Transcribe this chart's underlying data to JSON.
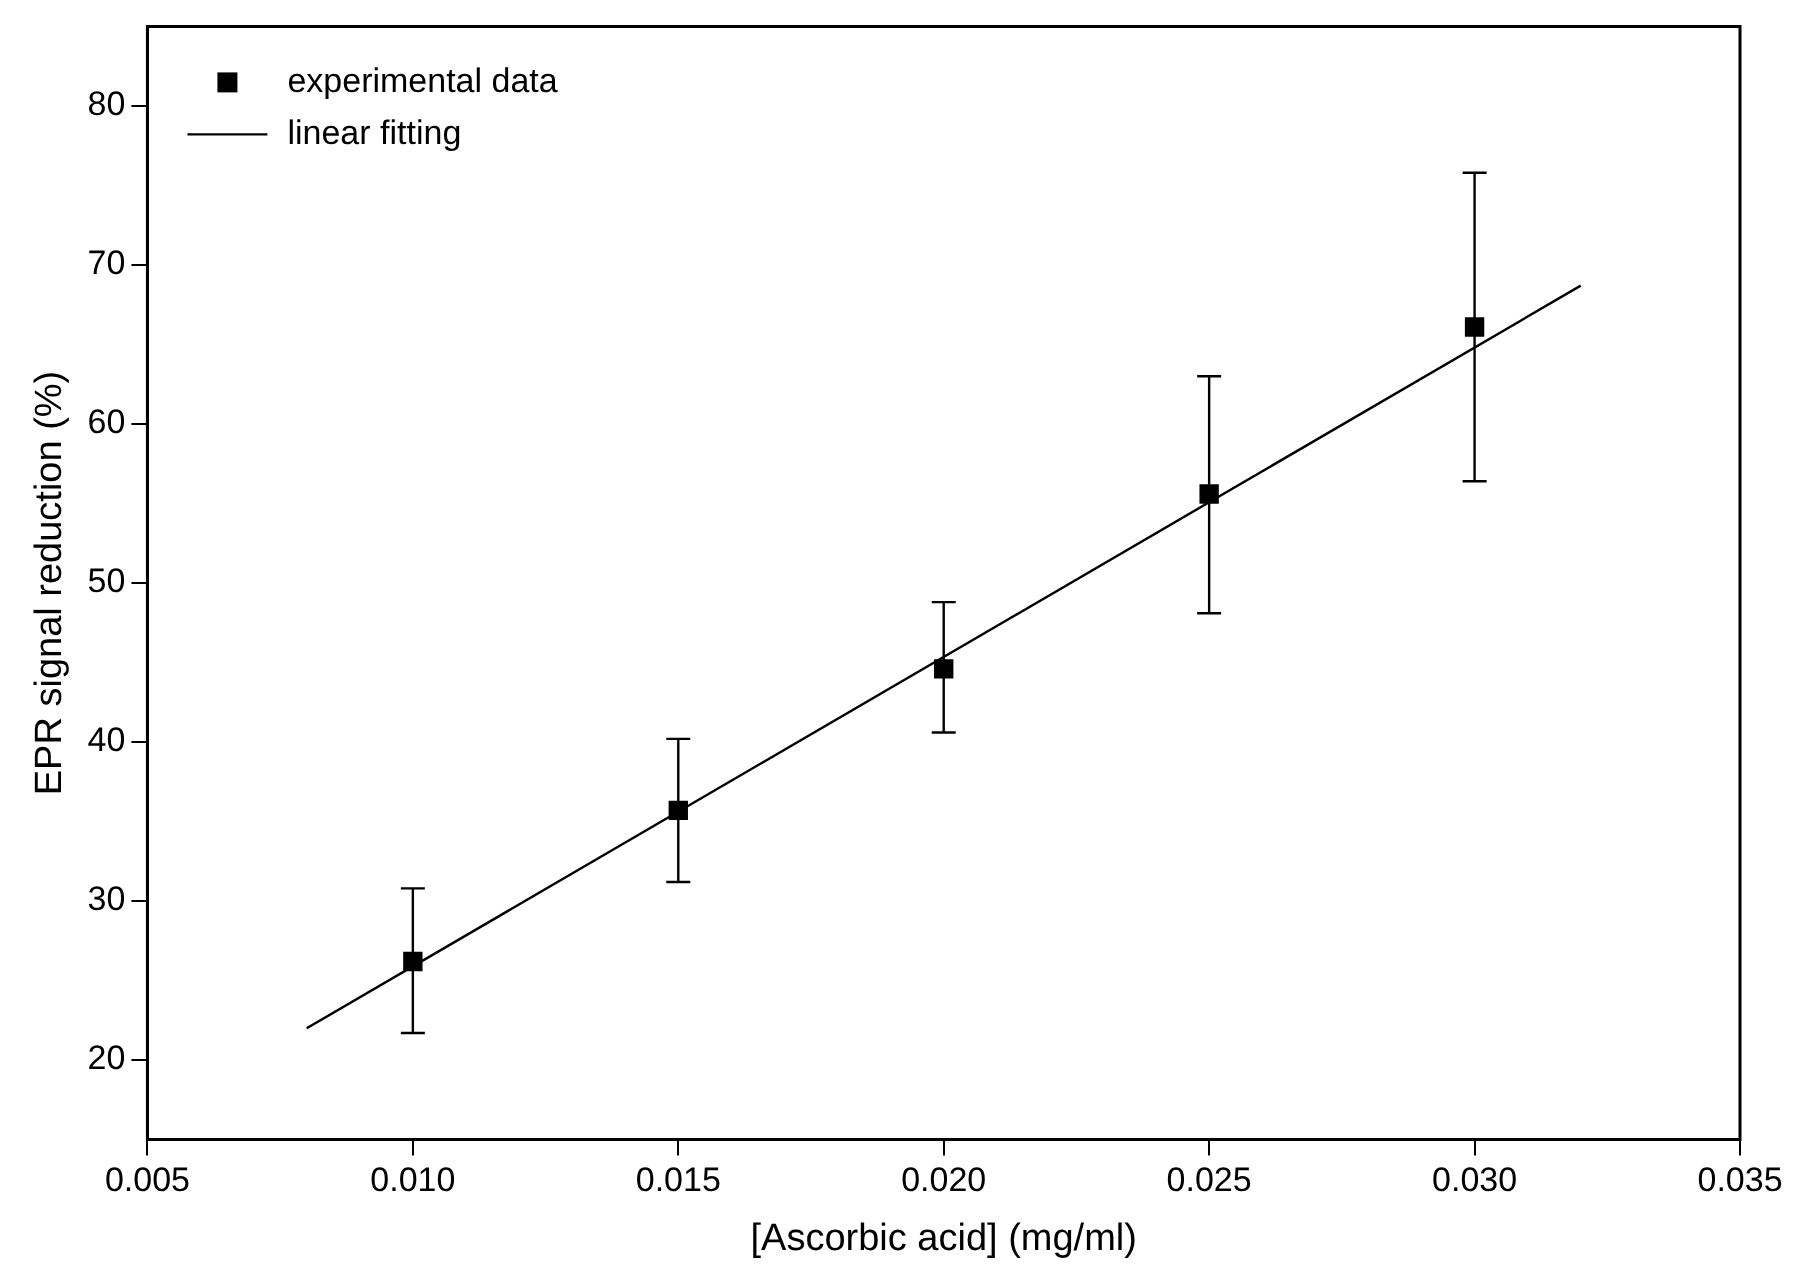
{
  "chart_data": {
    "type": "scatter",
    "xlabel": "[Ascorbic acid] (mg/ml)",
    "ylabel": "EPR signal reduction (%)",
    "xlim": [
      0.005,
      0.035
    ],
    "xticks": [
      0.005,
      {
        "value": 0.01,
        "label": "0.010"
      },
      0.015,
      {
        "value": 0.02,
        "label": "0.020"
      },
      0.025,
      {
        "value": 0.03,
        "label": "0.030"
      },
      0.035
    ],
    "ylim": [
      15,
      85
    ],
    "yticks": [
      20,
      30,
      40,
      50,
      60,
      70,
      80
    ],
    "grid": false,
    "legend": "top left",
    "series": [
      {
        "name": "experimental data",
        "marker": "square",
        "color": "#000000",
        "x": [
          0.01,
          0.015,
          0.02,
          0.025,
          0.03
        ],
        "values": [
          26.2,
          35.7,
          44.6,
          55.6,
          66.1
        ],
        "errors": [
          [
            21.7,
            30.8
          ],
          [
            31.2,
            40.2
          ],
          [
            40.6,
            48.8
          ],
          [
            48.1,
            63.0
          ],
          [
            56.4,
            75.8
          ]
        ]
      },
      {
        "name": "linear fitting",
        "type": "line",
        "marker": "none",
        "line_style": "solid",
        "color": "#000000",
        "x": [
          0.008,
          0.032
        ],
        "values": [
          22.0,
          68.7
        ]
      }
    ]
  }
}
